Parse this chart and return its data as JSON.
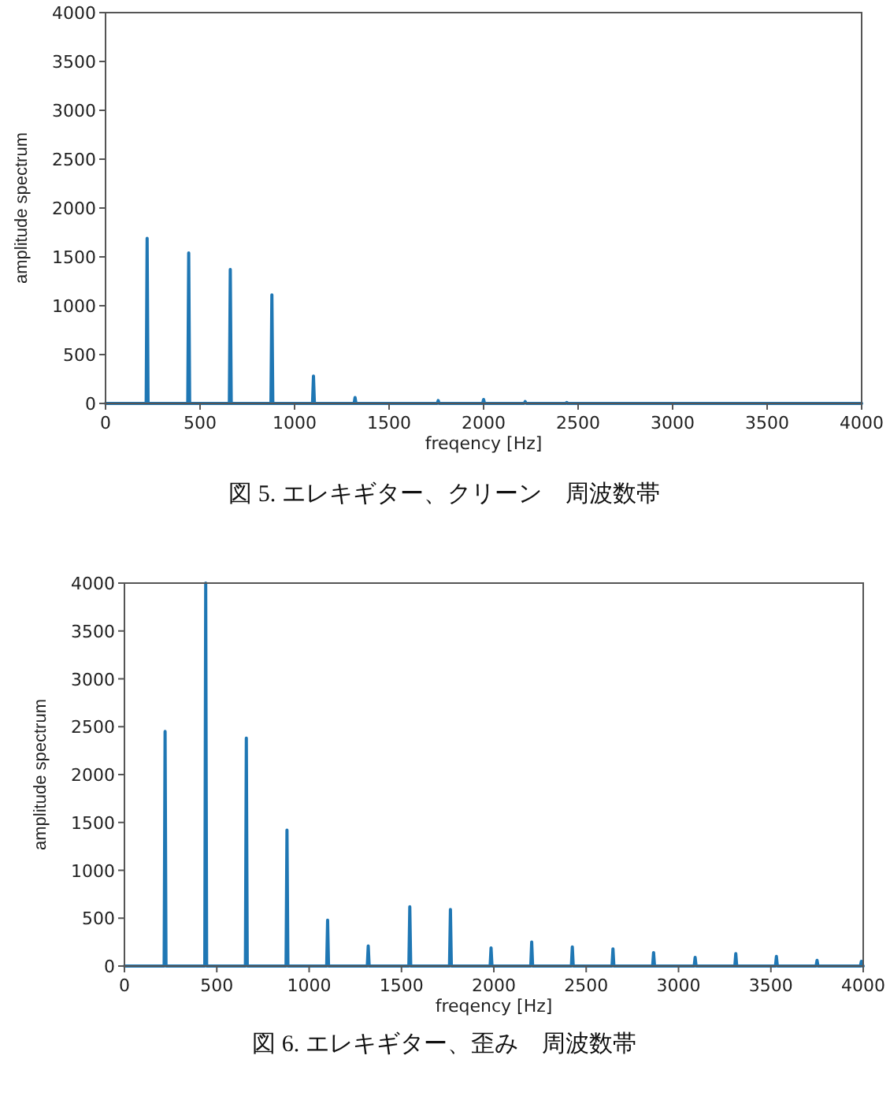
{
  "chart_data": [
    {
      "type": "line",
      "xlabel": "freqency [Hz]",
      "ylabel": "amplitude spectrum",
      "annotations": [
        "図 5. エレキギター、クリーン　周波数帯"
      ],
      "x": [
        0,
        215,
        220,
        225,
        435,
        440,
        445,
        655,
        660,
        665,
        875,
        880,
        885,
        1095,
        1100,
        1105,
        1315,
        1320,
        1325,
        1755,
        1760,
        1765,
        1995,
        2000,
        2005,
        2215,
        2220,
        2225,
        2435,
        2440,
        2445,
        4000
      ],
      "series": [
        {
          "color": "#1f77b4",
          "values": [
            0,
            0,
            1690,
            0,
            0,
            1540,
            0,
            0,
            1370,
            0,
            0,
            1110,
            0,
            0,
            280,
            0,
            0,
            60,
            0,
            0,
            30,
            0,
            0,
            40,
            0,
            0,
            20,
            0,
            0,
            10,
            0,
            0
          ]
        }
      ],
      "xlim": [
        0,
        4000
      ],
      "ylim": [
        0,
        4000
      ],
      "xticks": [
        0,
        500,
        1000,
        1500,
        2000,
        2500,
        3000,
        3500,
        4000
      ],
      "yticks": [
        0,
        500,
        1000,
        1500,
        2000,
        2500,
        3000,
        3500,
        4000
      ],
      "grid": false
    },
    {
      "type": "line",
      "xlabel": "freqency [Hz]",
      "ylabel": "amplitude spectrum",
      "annotations": [
        "図 6. エレキギター、歪み　周波数帯"
      ],
      "x": [
        0,
        215,
        220,
        225,
        435,
        440,
        445,
        655,
        660,
        665,
        875,
        880,
        885,
        1095,
        1100,
        1105,
        1315,
        1320,
        1325,
        1540,
        1545,
        1550,
        1760,
        1765,
        1770,
        1980,
        1985,
        1990,
        2200,
        2205,
        2210,
        2420,
        2425,
        2430,
        2640,
        2645,
        2650,
        2860,
        2865,
        2870,
        3085,
        3090,
        3095,
        3305,
        3310,
        3315,
        3525,
        3530,
        3535,
        3745,
        3750,
        3755,
        3985,
        3990,
        3995,
        4000
      ],
      "series": [
        {
          "color": "#1f77b4",
          "values": [
            0,
            0,
            2450,
            0,
            0,
            4000,
            0,
            0,
            2380,
            0,
            0,
            1420,
            0,
            0,
            480,
            0,
            0,
            210,
            0,
            0,
            620,
            0,
            0,
            590,
            0,
            0,
            190,
            0,
            0,
            250,
            0,
            0,
            200,
            0,
            0,
            180,
            0,
            0,
            140,
            0,
            0,
            90,
            0,
            0,
            130,
            0,
            0,
            100,
            0,
            0,
            60,
            0,
            0,
            50,
            0,
            0
          ]
        }
      ],
      "xlim": [
        0,
        4000
      ],
      "ylim": [
        0,
        4000
      ],
      "xticks": [
        0,
        500,
        1000,
        1500,
        2000,
        2500,
        3000,
        3500,
        4000
      ],
      "yticks": [
        0,
        500,
        1000,
        1500,
        2000,
        2500,
        3000,
        3500,
        4000
      ],
      "grid": false
    }
  ]
}
